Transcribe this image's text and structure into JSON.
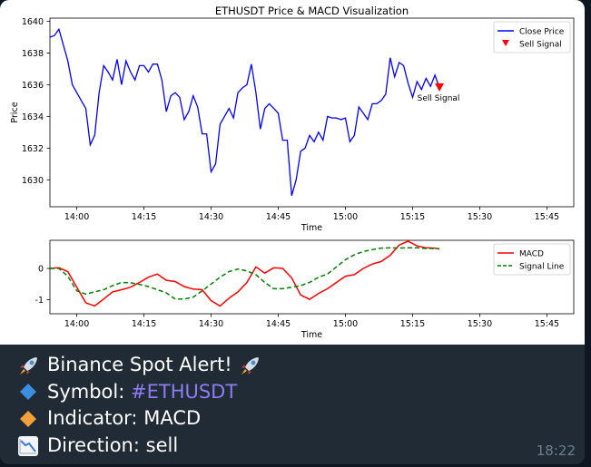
{
  "message": {
    "caption": {
      "title": "Binance Spot Alert!",
      "symbol_label": "Symbol:",
      "symbol_value": "#ETHUSDT",
      "indicator_label": "Indicator:",
      "indicator_value": "MACD",
      "direction_label": "Direction:",
      "direction_value": "sell"
    },
    "time": "18:22",
    "icons": [
      "rocket-icon",
      "blue-diamond-icon",
      "orange-diamond-icon",
      "chart-decreasing-icon"
    ]
  },
  "chart_data": [
    {
      "type": "line",
      "title": "ETHUSDT Price & MACD Visualization",
      "xlabel": "Time",
      "ylabel": "Price",
      "x_ticks": [
        "14:00",
        "14:15",
        "14:30",
        "14:45",
        "15:00",
        "15:15",
        "15:30",
        "15:45"
      ],
      "y_ticks": [
        "1630",
        "1632",
        "1634",
        "1636",
        "1638",
        "1640"
      ],
      "xlim": [
        "13:54",
        "15:51"
      ],
      "ylim": [
        1628.3,
        1640.2
      ],
      "legend": "top-right",
      "series": [
        {
          "name": "Close Price",
          "color": "#0000ff",
          "points": [
            [
              "13:54",
              1639.0
            ],
            [
              "13:55",
              1639.1
            ],
            [
              "13:56",
              1639.5
            ],
            [
              "13:57",
              1638.5
            ],
            [
              "13:58",
              1637.5
            ],
            [
              "13:59",
              1636.0
            ],
            [
              "14:00",
              1635.5
            ],
            [
              "14:01",
              1635.0
            ],
            [
              "14:02",
              1634.5
            ],
            [
              "14:03",
              1632.2
            ],
            [
              "14:04",
              1632.8
            ],
            [
              "14:05",
              1635.5
            ],
            [
              "14:06",
              1637.2
            ],
            [
              "14:07",
              1636.8
            ],
            [
              "14:08",
              1636.3
            ],
            [
              "14:09",
              1637.6
            ],
            [
              "14:10",
              1636.0
            ],
            [
              "14:11",
              1637.5
            ],
            [
              "14:12",
              1636.8
            ],
            [
              "14:13",
              1636.3
            ],
            [
              "14:14",
              1637.2
            ],
            [
              "14:15",
              1637.2
            ],
            [
              "14:16",
              1636.8
            ],
            [
              "14:17",
              1637.3
            ],
            [
              "14:18",
              1637.3
            ],
            [
              "14:19",
              1636.3
            ],
            [
              "14:20",
              1634.3
            ],
            [
              "14:21",
              1635.3
            ],
            [
              "14:22",
              1635.5
            ],
            [
              "14:23",
              1635.2
            ],
            [
              "14:24",
              1633.8
            ],
            [
              "14:25",
              1634.3
            ],
            [
              "14:26",
              1635.3
            ],
            [
              "14:27",
              1634.6
            ],
            [
              "14:28",
              1632.9
            ],
            [
              "14:29",
              1632.9
            ],
            [
              "14:30",
              1630.5
            ],
            [
              "14:31",
              1631.0
            ],
            [
              "14:32",
              1633.5
            ],
            [
              "14:33",
              1634.0
            ],
            [
              "14:34",
              1634.5
            ],
            [
              "14:35",
              1633.9
            ],
            [
              "14:36",
              1635.5
            ],
            [
              "14:37",
              1635.8
            ],
            [
              "14:38",
              1636.0
            ],
            [
              "14:39",
              1637.3
            ],
            [
              "14:40",
              1635.5
            ],
            [
              "14:41",
              1633.2
            ],
            [
              "14:42",
              1634.5
            ],
            [
              "14:43",
              1634.8
            ],
            [
              "14:44",
              1634.5
            ],
            [
              "14:45",
              1634.2
            ],
            [
              "14:46",
              1632.5
            ],
            [
              "14:47",
              1632.5
            ],
            [
              "14:48",
              1629.0
            ],
            [
              "14:49",
              1630.0
            ],
            [
              "14:50",
              1631.8
            ],
            [
              "14:51",
              1632.0
            ],
            [
              "14:52",
              1632.8
            ],
            [
              "14:53",
              1632.4
            ],
            [
              "14:54",
              1633.0
            ],
            [
              "14:55",
              1632.5
            ],
            [
              "14:56",
              1634.0
            ],
            [
              "14:57",
              1633.9
            ],
            [
              "14:58",
              1633.9
            ],
            [
              "14:59",
              1633.8
            ],
            [
              "15:00",
              1633.9
            ],
            [
              "15:01",
              1632.4
            ],
            [
              "15:02",
              1632.8
            ],
            [
              "15:03",
              1634.6
            ],
            [
              "15:04",
              1634.2
            ],
            [
              "15:05",
              1633.8
            ],
            [
              "15:06",
              1634.8
            ],
            [
              "15:07",
              1634.8
            ],
            [
              "15:08",
              1635.0
            ],
            [
              "15:09",
              1635.4
            ],
            [
              "15:10",
              1637.7
            ],
            [
              "15:11",
              1636.5
            ],
            [
              "15:12",
              1637.4
            ],
            [
              "15:13",
              1637.2
            ],
            [
              "15:14",
              1636.1
            ],
            [
              "15:15",
              1635.2
            ],
            [
              "15:16",
              1636.2
            ],
            [
              "15:17",
              1635.7
            ],
            [
              "15:18",
              1636.4
            ],
            [
              "15:19",
              1635.9
            ],
            [
              "15:20",
              1636.6
            ],
            [
              "15:21",
              1635.8
            ]
          ]
        },
        {
          "name": "Sell Signal",
          "color": "#ff0000",
          "marker": "triangle-down",
          "points": [
            [
              "15:21",
              1635.8
            ]
          ]
        }
      ],
      "annotations": [
        {
          "text": "Sell Signal",
          "x": "15:21",
          "y": 1635.8
        }
      ]
    },
    {
      "type": "line",
      "xlabel": "Time",
      "ylabel": "",
      "x_ticks": [
        "14:00",
        "14:15",
        "14:30",
        "14:45",
        "15:00",
        "15:15",
        "15:30",
        "15:45"
      ],
      "y_ticks": [
        "-1",
        "0"
      ],
      "xlim": [
        "13:54",
        "15:51"
      ],
      "ylim": [
        -1.45,
        0.9
      ],
      "legend": "top-right",
      "series": [
        {
          "name": "MACD",
          "color": "#ff0000",
          "style": "solid",
          "points": [
            [
              "13:54",
              0.0
            ],
            [
              "13:56",
              0.02
            ],
            [
              "13:58",
              -0.1
            ],
            [
              "14:00",
              -0.6
            ],
            [
              "14:02",
              -1.1
            ],
            [
              "14:04",
              -1.2
            ],
            [
              "14:06",
              -0.98
            ],
            [
              "14:08",
              -0.75
            ],
            [
              "14:10",
              -0.68
            ],
            [
              "14:12",
              -0.6
            ],
            [
              "14:14",
              -0.45
            ],
            [
              "14:16",
              -0.28
            ],
            [
              "14:18",
              -0.18
            ],
            [
              "14:20",
              -0.38
            ],
            [
              "14:22",
              -0.42
            ],
            [
              "14:24",
              -0.58
            ],
            [
              "14:26",
              -0.66
            ],
            [
              "14:28",
              -0.68
            ],
            [
              "14:30",
              -1.03
            ],
            [
              "14:32",
              -1.2
            ],
            [
              "14:34",
              -0.95
            ],
            [
              "14:36",
              -0.75
            ],
            [
              "14:38",
              -0.45
            ],
            [
              "14:40",
              0.05
            ],
            [
              "14:42",
              -0.15
            ],
            [
              "14:44",
              0.02
            ],
            [
              "14:46",
              0.0
            ],
            [
              "14:48",
              -0.3
            ],
            [
              "14:50",
              -0.85
            ],
            [
              "14:52",
              -0.99
            ],
            [
              "14:54",
              -0.8
            ],
            [
              "14:56",
              -0.65
            ],
            [
              "14:58",
              -0.45
            ],
            [
              "15:00",
              -0.25
            ],
            [
              "15:02",
              -0.2
            ],
            [
              "15:04",
              0.0
            ],
            [
              "15:06",
              0.14
            ],
            [
              "15:08",
              0.22
            ],
            [
              "15:10",
              0.42
            ],
            [
              "15:12",
              0.75
            ],
            [
              "15:14",
              0.87
            ],
            [
              "15:16",
              0.72
            ],
            [
              "15:18",
              0.66
            ],
            [
              "15:20",
              0.65
            ],
            [
              "15:21",
              0.62
            ]
          ]
        },
        {
          "name": "Signal Line",
          "color": "#008000",
          "style": "dashed",
          "points": [
            [
              "13:54",
              0.0
            ],
            [
              "13:56",
              0.0
            ],
            [
              "13:58",
              -0.25
            ],
            [
              "14:00",
              -0.72
            ],
            [
              "14:02",
              -0.82
            ],
            [
              "14:04",
              -0.75
            ],
            [
              "14:06",
              -0.68
            ],
            [
              "14:08",
              -0.55
            ],
            [
              "14:10",
              -0.45
            ],
            [
              "14:12",
              -0.46
            ],
            [
              "14:14",
              -0.51
            ],
            [
              "14:16",
              -0.58
            ],
            [
              "14:18",
              -0.68
            ],
            [
              "14:20",
              -0.78
            ],
            [
              "14:22",
              -0.98
            ],
            [
              "14:24",
              -0.98
            ],
            [
              "14:26",
              -0.92
            ],
            [
              "14:28",
              -0.72
            ],
            [
              "14:30",
              -0.5
            ],
            [
              "14:32",
              -0.28
            ],
            [
              "14:34",
              -0.1
            ],
            [
              "14:36",
              -0.02
            ],
            [
              "14:38",
              -0.08
            ],
            [
              "14:40",
              -0.2
            ],
            [
              "14:42",
              -0.45
            ],
            [
              "14:44",
              -0.65
            ],
            [
              "14:46",
              -0.65
            ],
            [
              "14:48",
              -0.6
            ],
            [
              "14:50",
              -0.55
            ],
            [
              "14:52",
              -0.45
            ],
            [
              "14:54",
              -0.28
            ],
            [
              "14:56",
              -0.18
            ],
            [
              "14:58",
              0.05
            ],
            [
              "15:00",
              0.28
            ],
            [
              "15:02",
              0.44
            ],
            [
              "15:04",
              0.54
            ],
            [
              "15:06",
              0.6
            ],
            [
              "15:08",
              0.65
            ],
            [
              "15:10",
              0.66
            ],
            [
              "15:12",
              0.65
            ],
            [
              "15:14",
              0.66
            ],
            [
              "15:16",
              0.66
            ],
            [
              "15:18",
              0.64
            ],
            [
              "15:20",
              0.64
            ],
            [
              "15:21",
              0.63
            ]
          ]
        }
      ]
    }
  ]
}
